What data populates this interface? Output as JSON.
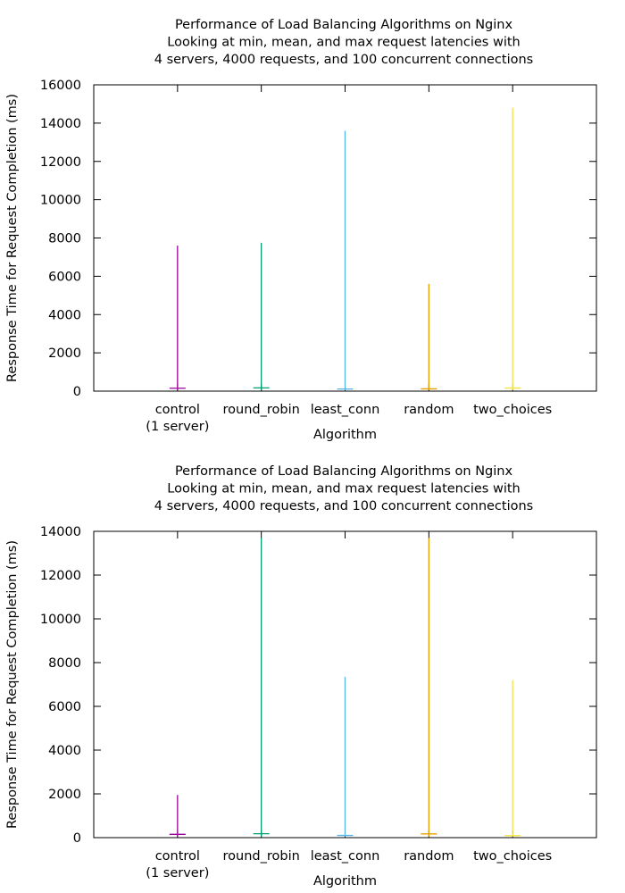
{
  "chart_data": [
    {
      "type": "candlestick",
      "title": [
        "Performance of Load Balancing Algorithms on Nginx",
        "Looking at min, mean, and max request latencies with",
        "4 servers, 4000 requests, and 100 concurrent connections"
      ],
      "xlabel": "Algorithm",
      "ylabel": "Response Time for Request Completion (ms)",
      "ylim": [
        0,
        16000
      ],
      "yticks": [
        0,
        2000,
        4000,
        6000,
        8000,
        10000,
        12000,
        14000,
        16000
      ],
      "categories": [
        {
          "label": [
            "control",
            "(1 server)"
          ],
          "min": 50,
          "mean": 150,
          "max": 7600,
          "color": "#990099"
        },
        {
          "label": [
            "round_robin"
          ],
          "min": 50,
          "mean": 170,
          "max": 7750,
          "color": "#009e73"
        },
        {
          "label": [
            "least_conn"
          ],
          "min": 50,
          "mean": 110,
          "max": 13600,
          "color": "#56b4e9"
        },
        {
          "label": [
            "random"
          ],
          "min": 50,
          "mean": 120,
          "max": 5600,
          "color": "#e69f00"
        },
        {
          "label": [
            "two_choices"
          ],
          "min": 50,
          "mean": 160,
          "max": 14800,
          "color": "#f0e442"
        }
      ]
    },
    {
      "type": "candlestick",
      "title": [
        "Performance of Load Balancing Algorithms on Nginx",
        "Looking at min, mean, and max request latencies with",
        "4 servers, 4000 requests, and 100 concurrent connections"
      ],
      "xlabel": "Algorithm",
      "ylabel": "Response Time for Request Completion (ms)",
      "ylim": [
        0,
        14000
      ],
      "yticks": [
        0,
        2000,
        4000,
        6000,
        8000,
        10000,
        12000,
        14000
      ],
      "categories": [
        {
          "label": [
            "control",
            "(1 server)"
          ],
          "min": 50,
          "mean": 150,
          "max": 1950,
          "color": "#990099"
        },
        {
          "label": [
            "round_robin"
          ],
          "min": 50,
          "mean": 180,
          "max": 13700,
          "color": "#009e73"
        },
        {
          "label": [
            "least_conn"
          ],
          "min": 50,
          "mean": 100,
          "max": 7350,
          "color": "#56b4e9"
        },
        {
          "label": [
            "random"
          ],
          "min": 50,
          "mean": 170,
          "max": 13700,
          "color": "#e69f00"
        },
        {
          "label": [
            "two_choices"
          ],
          "min": 50,
          "mean": 90,
          "max": 7200,
          "color": "#f0e442"
        }
      ]
    }
  ]
}
